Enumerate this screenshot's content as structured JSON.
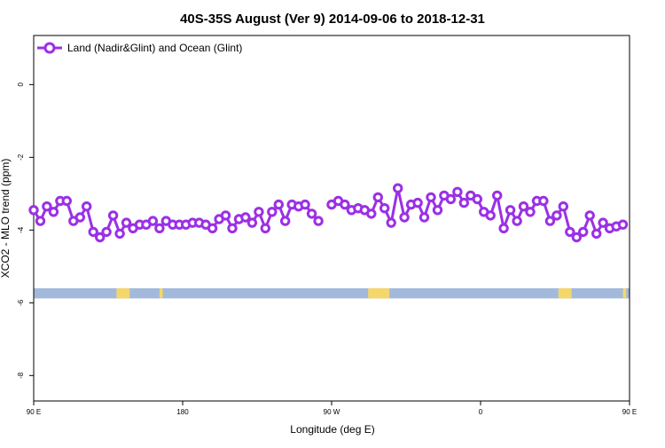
{
  "chart_data": {
    "type": "line",
    "title": "40S-35S August (Ver 9)   2014-09-06 to 2018-12-31",
    "xlabel": "Longitude (deg E)",
    "ylabel": "XCO2 - MLO trend (ppm)",
    "xlim": [
      90,
      450
    ],
    "ylim": [
      -8.7,
      1.35
    ],
    "x_ticks": [
      {
        "value": 90,
        "label": "90 E"
      },
      {
        "value": 180,
        "label": "180"
      },
      {
        "value": 270,
        "label": "90 W"
      },
      {
        "value": 360,
        "label": "0"
      },
      {
        "value": 450,
        "label": "90 E"
      },
      {
        "value": 540,
        "label": "180"
      }
    ],
    "y_ticks": [
      {
        "value": 0,
        "label": "0"
      },
      {
        "value": -2,
        "label": "-2"
      },
      {
        "value": -4,
        "label": "-4"
      },
      {
        "value": -6,
        "label": "-6"
      },
      {
        "value": -8,
        "label": "-8"
      }
    ],
    "legend_position": "top-left",
    "grid": false,
    "colors": {
      "series": "#9b30e6",
      "ocean_band": "#a3b9dc",
      "land": "#f5d66a"
    },
    "map_band": {
      "y_top": -5.6,
      "y_bottom": -5.88
    },
    "land_segments": [
      [
        140,
        148
      ],
      [
        166,
        168
      ],
      [
        292,
        305
      ],
      [
        407,
        415
      ],
      [
        446,
        448
      ]
    ],
    "series": [
      {
        "name": "Land (Nadir&Glint) and Ocean (Glint)",
        "segments": [
          [
            [
              90,
              -3.45
            ],
            [
              94,
              -3.75
            ],
            [
              98,
              -3.35
            ],
            [
              102,
              -3.5
            ],
            [
              106,
              -3.2
            ],
            [
              110,
              -3.2
            ],
            [
              114,
              -3.75
            ],
            [
              118,
              -3.65
            ],
            [
              122,
              -3.35
            ],
            [
              126,
              -4.05
            ],
            [
              130,
              -4.2
            ],
            [
              134,
              -4.05
            ],
            [
              138,
              -3.6
            ],
            [
              142,
              -4.1
            ],
            [
              146,
              -3.8
            ],
            [
              150,
              -3.95
            ],
            [
              154,
              -3.85
            ],
            [
              158,
              -3.85
            ],
            [
              162,
              -3.75
            ],
            [
              166,
              -3.95
            ],
            [
              170,
              -3.75
            ],
            [
              174,
              -3.85
            ],
            [
              178,
              -3.85
            ],
            [
              182,
              -3.85
            ],
            [
              186,
              -3.8
            ],
            [
              190,
              -3.8
            ],
            [
              194,
              -3.85
            ],
            [
              198,
              -3.95
            ],
            [
              202,
              -3.7
            ],
            [
              206,
              -3.6
            ],
            [
              210,
              -3.95
            ],
            [
              214,
              -3.7
            ],
            [
              218,
              -3.65
            ],
            [
              222,
              -3.8
            ],
            [
              226,
              -3.5
            ],
            [
              230,
              -3.95
            ],
            [
              234,
              -3.5
            ],
            [
              238,
              -3.3
            ],
            [
              242,
              -3.75
            ],
            [
              246,
              -3.3
            ],
            [
              250,
              -3.35
            ],
            [
              254,
              -3.3
            ],
            [
              258,
              -3.55
            ],
            [
              262,
              -3.75
            ]
          ],
          [
            [
              270,
              -3.3
            ],
            [
              274,
              -3.2
            ],
            [
              278,
              -3.3
            ],
            [
              282,
              -3.45
            ],
            [
              286,
              -3.4
            ],
            [
              290,
              -3.45
            ],
            [
              294,
              -3.55
            ],
            [
              298,
              -3.1
            ],
            [
              302,
              -3.4
            ],
            [
              306,
              -3.8
            ],
            [
              310,
              -2.85
            ],
            [
              314,
              -3.65
            ],
            [
              318,
              -3.3
            ],
            [
              322,
              -3.25
            ],
            [
              326,
              -3.65
            ],
            [
              330,
              -3.1
            ],
            [
              334,
              -3.45
            ],
            [
              338,
              -3.05
            ],
            [
              342,
              -3.15
            ],
            [
              346,
              -2.95
            ],
            [
              350,
              -3.25
            ],
            [
              354,
              -3.05
            ],
            [
              358,
              -3.15
            ],
            [
              362,
              -3.5
            ],
            [
              366,
              -3.6
            ],
            [
              370,
              -3.05
            ],
            [
              374,
              -3.95
            ],
            [
              378,
              -3.45
            ],
            [
              382,
              -3.75
            ],
            [
              386,
              -3.35
            ],
            [
              390,
              -3.5
            ],
            [
              394,
              -3.2
            ],
            [
              398,
              -3.2
            ],
            [
              402,
              -3.75
            ],
            [
              406,
              -3.6
            ],
            [
              410,
              -3.35
            ],
            [
              414,
              -4.05
            ],
            [
              418,
              -4.2
            ],
            [
              422,
              -4.05
            ],
            [
              426,
              -3.6
            ],
            [
              430,
              -4.1
            ],
            [
              434,
              -3.8
            ],
            [
              438,
              -3.95
            ],
            [
              442,
              -3.9
            ],
            [
              446,
              -3.85
            ]
          ]
        ]
      }
    ]
  }
}
